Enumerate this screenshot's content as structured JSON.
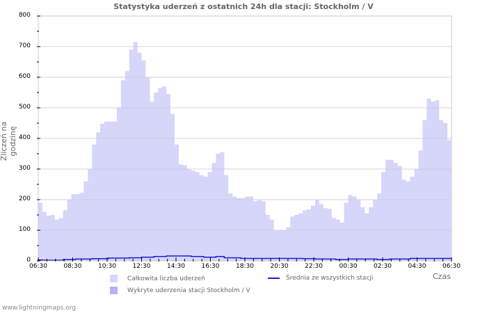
{
  "title": "Statystyka uderzeń z ostatnich 24h dla stacji: Stockholm / V",
  "footer": "www.lightningmaps.org",
  "colors": {
    "total_area": "#d6d6fb",
    "station_area": "#b3b3f7",
    "average_line": "#1a1ad6",
    "grid": "#c8c8c8",
    "text": "#666666"
  },
  "chart_data": {
    "type": "area",
    "title": "Statystyka uderzeń z ostatnich 24h dla stacji: Stockholm / V",
    "xlabel": "Czas",
    "ylabel": "Zliczeń na godzinę",
    "ylim": [
      0,
      800
    ],
    "yticks": [
      0,
      100,
      200,
      300,
      400,
      500,
      600,
      700,
      800
    ],
    "xticks": [
      "06:30",
      "08:30",
      "10:30",
      "12:30",
      "14:30",
      "16:30",
      "18:30",
      "20:30",
      "22:30",
      "00:30",
      "02:30",
      "04:30",
      "06:30"
    ],
    "grid": true,
    "legend_position": "bottom",
    "legend": [
      {
        "label": "Całkowita liczba uderzeń",
        "kind": "area",
        "color": "#d6d6fb"
      },
      {
        "label": "Wykryte uderzenia stacji Stockholm / V",
        "kind": "area",
        "color": "#b3b3f7"
      },
      {
        "label": "Średnia ze wszystkich stacji",
        "kind": "line",
        "color": "#1a1ad6"
      }
    ],
    "x_interval_minutes": 15,
    "series": [
      {
        "name": "Całkowita liczba uderzeń",
        "values": [
          190,
          160,
          148,
          150,
          135,
          140,
          165,
          200,
          218,
          218,
          222,
          260,
          300,
          380,
          420,
          448,
          455,
          455,
          455,
          500,
          590,
          620,
          690,
          715,
          680,
          655,
          600,
          520,
          550,
          565,
          570,
          545,
          480,
          380,
          315,
          312,
          300,
          295,
          290,
          280,
          275,
          290,
          320,
          350,
          355,
          280,
          220,
          210,
          205,
          205,
          210,
          210,
          195,
          198,
          195,
          150,
          135,
          100,
          100,
          100,
          110,
          145,
          150,
          155,
          165,
          168,
          180,
          200,
          185,
          172,
          170,
          140,
          135,
          125,
          190,
          215,
          210,
          200,
          175,
          155,
          175,
          200,
          220,
          290,
          330,
          330,
          320,
          310,
          265,
          260,
          275,
          300,
          360,
          460,
          530,
          520,
          525,
          460,
          450,
          395
        ],
        "note": "approx. readings at ~14.4 min intervals from 06:30 to 06:30"
      },
      {
        "name": "Wykryte uderzenia stacji Stockholm / V",
        "values": [
          0,
          0,
          0,
          0,
          0,
          0,
          0,
          0,
          0,
          0,
          0,
          0,
          0,
          0,
          0,
          0,
          0,
          0,
          0,
          0,
          0,
          0,
          0,
          0,
          0,
          0,
          0,
          0,
          0,
          0,
          0,
          0,
          0,
          0,
          0,
          0,
          0,
          0,
          0,
          0,
          0,
          0,
          0,
          0,
          0,
          0,
          0,
          0,
          0,
          0,
          0,
          0,
          0,
          0,
          0,
          0,
          0,
          0,
          0,
          0,
          0,
          0,
          0,
          0,
          0,
          0,
          0,
          0,
          0,
          0,
          0,
          0,
          0,
          0,
          0,
          0,
          0,
          0,
          0,
          0,
          0,
          0,
          0,
          0,
          0,
          0,
          0,
          0,
          0,
          0,
          0,
          0,
          0,
          0,
          0,
          0,
          0,
          0,
          0,
          0
        ]
      },
      {
        "name": "Średnia ze wszystkich stacji",
        "values": [
          3,
          2,
          2,
          2,
          2,
          2,
          4,
          4,
          4,
          6,
          6,
          6,
          6,
          7,
          7,
          7,
          7,
          9,
          9,
          9,
          9,
          9,
          10,
          10,
          10,
          12,
          12,
          12,
          14,
          14,
          14,
          16,
          16,
          16,
          16,
          16,
          16,
          14,
          14,
          14,
          12,
          12,
          12,
          14,
          14,
          10,
          10,
          10,
          10,
          8,
          8,
          8,
          8,
          8,
          8,
          8,
          8,
          8,
          8,
          8,
          8,
          8,
          8,
          8,
          7,
          7,
          7,
          6,
          6,
          6,
          6,
          6,
          4,
          4,
          4,
          6,
          6,
          6,
          6,
          6,
          6,
          6,
          4,
          4,
          4,
          6,
          6,
          6,
          6,
          6,
          8,
          8,
          8,
          8,
          8,
          8,
          8,
          8,
          8,
          8
        ]
      }
    ]
  }
}
